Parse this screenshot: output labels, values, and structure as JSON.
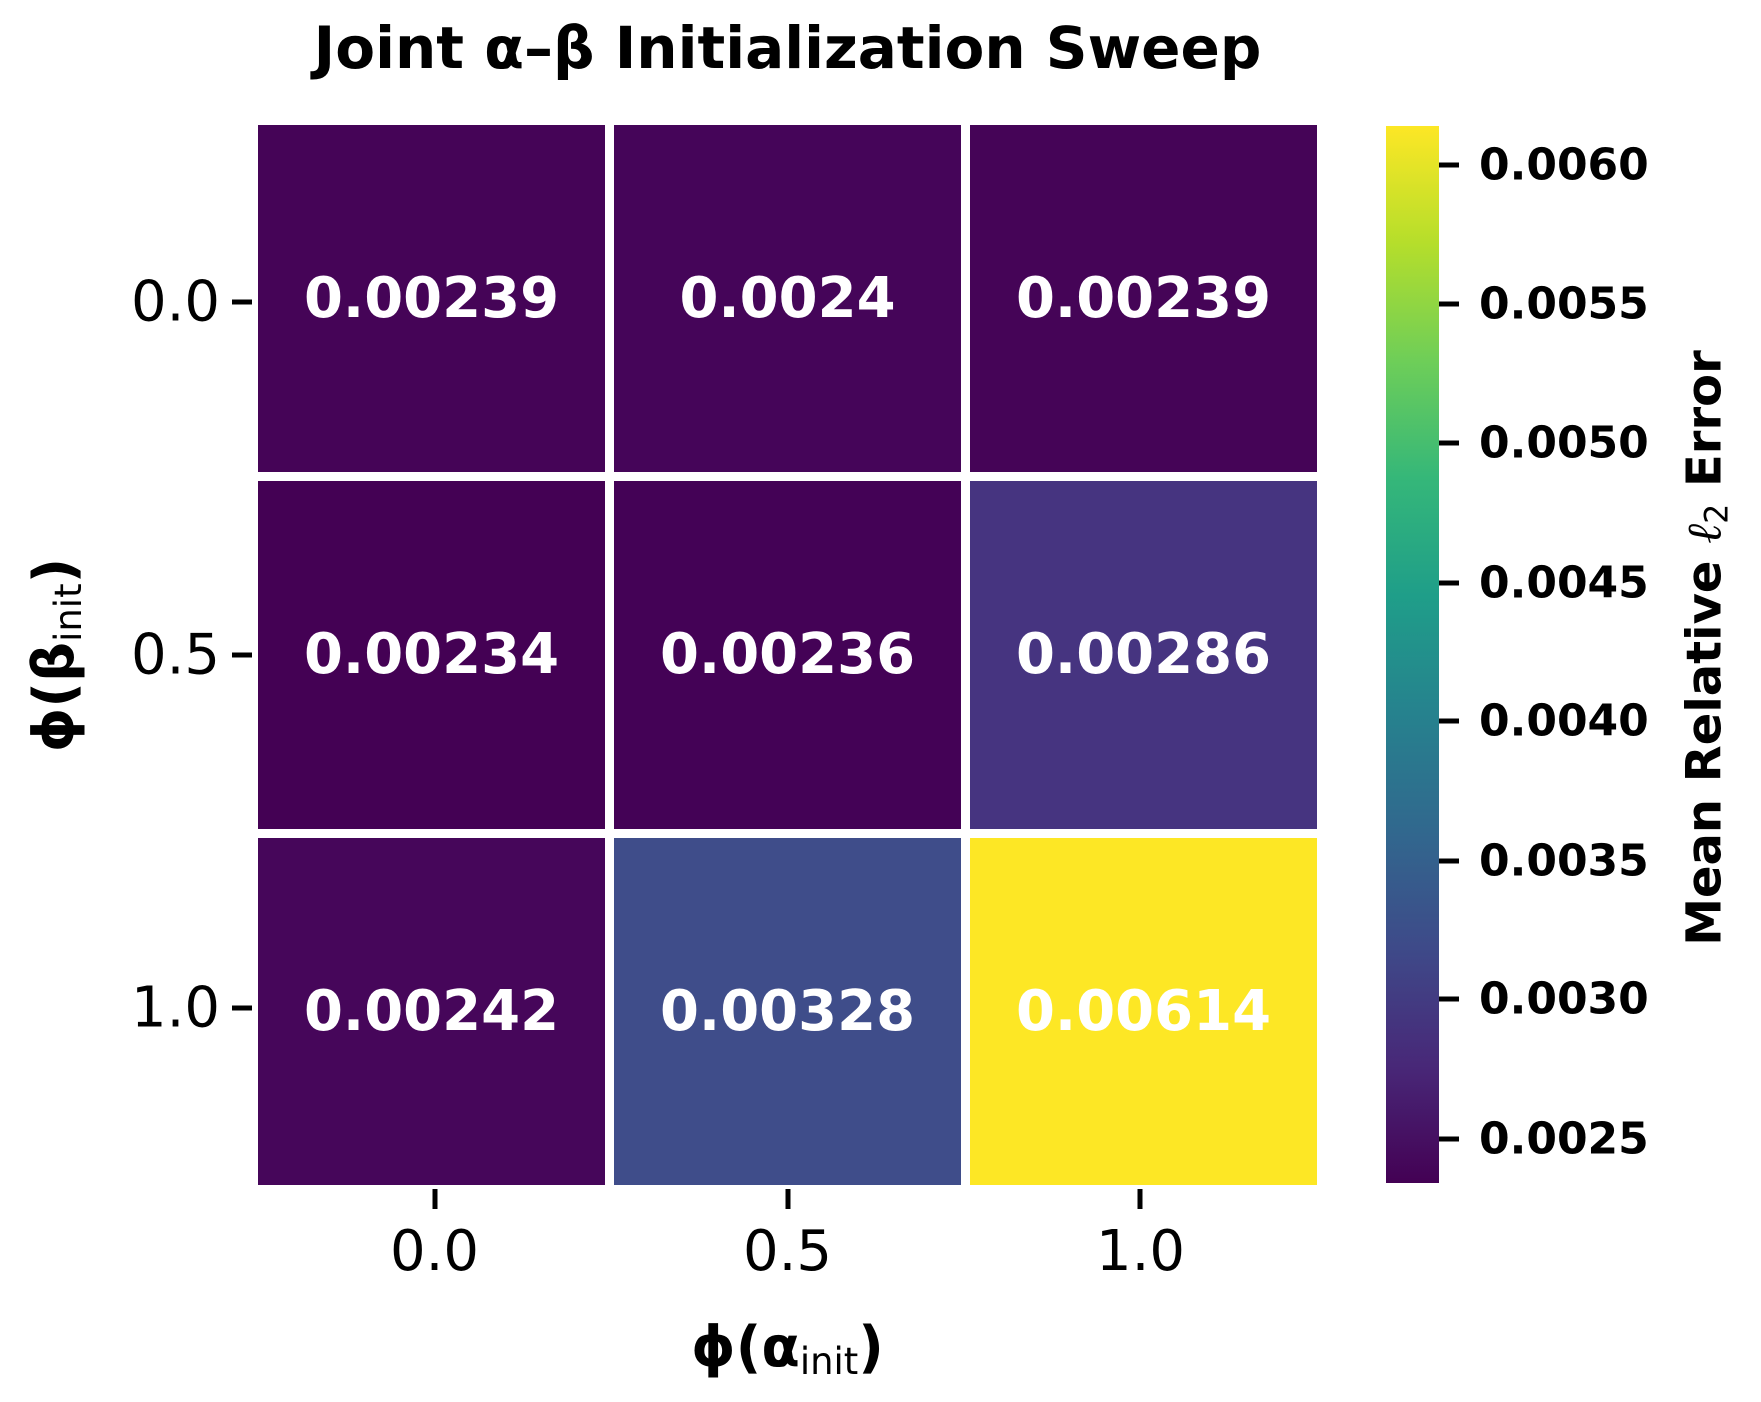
{
  "chart_data": {
    "type": "heatmap",
    "title": "Joint α–β Initialization Sweep",
    "xlabel": "ϕ(α_init)",
    "ylabel": "ϕ(β_init)",
    "x_tick_labels": [
      "0.0",
      "0.5",
      "1.0"
    ],
    "y_tick_labels": [
      "0.0",
      "0.5",
      "1.0"
    ],
    "rows": [
      {
        "y": "0.0",
        "values": [
          0.00239,
          0.0024,
          0.00239
        ]
      },
      {
        "y": "0.5",
        "values": [
          0.00234,
          0.00236,
          0.00286
        ]
      },
      {
        "y": "1.0",
        "values": [
          0.00242,
          0.00328,
          0.00614
        ]
      }
    ],
    "annotation_text_color": "#ffffff",
    "colorbar": {
      "label": "Mean Relative ℓ2 Error",
      "colormap": "viridis",
      "vmin": 0.00234,
      "vmax": 0.00614,
      "tick_labels": [
        "0.0060",
        "0.0055",
        "0.0050",
        "0.0045",
        "0.0040",
        "0.0035",
        "0.0030",
        "0.0025"
      ]
    },
    "grid": false,
    "legend_position": "right-colorbar"
  },
  "display": {
    "xlabel_parts": {
      "prefix": "ϕ(α",
      "sub": "init",
      "suffix": ")"
    },
    "ylabel_parts": {
      "prefix": "ϕ(β",
      "sub": "init",
      "suffix": ")"
    },
    "cbar_label_parts": {
      "prefix": "Mean Relative ",
      "ell": "ℓ",
      "sub": "2",
      "suffix": " Error"
    },
    "cells": [
      {
        "label": "0.00239",
        "color": "#450457"
      },
      {
        "label": "0.0024",
        "color": "#450559"
      },
      {
        "label": "0.00239",
        "color": "#450457"
      },
      {
        "label": "0.00234",
        "color": "#440154"
      },
      {
        "label": "0.00236",
        "color": "#440256"
      },
      {
        "label": "0.00286",
        "color": "#463480"
      },
      {
        "label": "0.00242",
        "color": "#46065a"
      },
      {
        "label": "0.00328",
        "color": "#3f4d8a"
      },
      {
        "label": "0.00614",
        "color": "#fde725"
      }
    ],
    "xticks": [
      {
        "label": "0.0",
        "pos": "16.667%"
      },
      {
        "label": "0.5",
        "pos": "50%"
      },
      {
        "label": "1.0",
        "pos": "83.333%"
      }
    ],
    "yticks": [
      {
        "label": "0.0",
        "pos": "16.667%"
      },
      {
        "label": "0.5",
        "pos": "50%"
      },
      {
        "label": "1.0",
        "pos": "83.333%"
      }
    ],
    "cbar_ticks": [
      {
        "label": "0.0060",
        "top": "3.7%"
      },
      {
        "label": "0.0055",
        "top": "16.8%"
      },
      {
        "label": "0.0050",
        "top": "30%"
      },
      {
        "label": "0.0045",
        "top": "43.2%"
      },
      {
        "label": "0.0040",
        "top": "56.3%"
      },
      {
        "label": "0.0035",
        "top": "69.5%"
      },
      {
        "label": "0.0030",
        "top": "82.6%"
      },
      {
        "label": "0.0025",
        "top": "95.8%"
      }
    ],
    "viridis_stops": [
      "#440154",
      "#482878",
      "#3e4a89",
      "#31688e",
      "#26828e",
      "#1f9e89",
      "#35b779",
      "#6ece58",
      "#b5de2b",
      "#fde725"
    ]
  }
}
